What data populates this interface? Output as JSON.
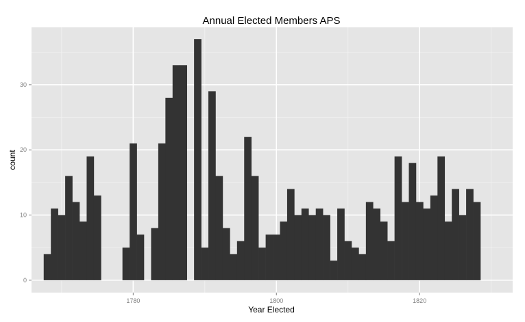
{
  "chart_data": {
    "type": "bar",
    "title": "Annual Elected Members APS",
    "xlabel": "Year Elected",
    "ylabel": "count",
    "xlim": [
      1765.8,
      1833.0
    ],
    "ylim": [
      -1.9,
      38.8
    ],
    "x_ticks": [
      1780,
      1800,
      1820
    ],
    "y_ticks": [
      0,
      10,
      20,
      30
    ],
    "grid": true,
    "legend": "none",
    "bin_width": 1,
    "x": [
      1768,
      1769,
      1770,
      1771,
      1772,
      1773,
      1774,
      1775,
      1776,
      1777,
      1778,
      1779,
      1780,
      1781,
      1782,
      1783,
      1784,
      1785,
      1786,
      1787,
      1788,
      1789,
      1790,
      1791,
      1792,
      1793,
      1794,
      1795,
      1796,
      1797,
      1798,
      1799,
      1800,
      1801,
      1802,
      1803,
      1804,
      1805,
      1806,
      1807,
      1808,
      1809,
      1810,
      1811,
      1812,
      1813,
      1814,
      1815,
      1816,
      1817,
      1818,
      1819,
      1820,
      1821,
      1822,
      1823,
      1824,
      1825,
      1826,
      1827,
      1828,
      1829
    ],
    "values": [
      4,
      11,
      10,
      16,
      12,
      9,
      19,
      13,
      0,
      0,
      0,
      5,
      21,
      7,
      0,
      8,
      21,
      28,
      33,
      33,
      0,
      37,
      5,
      29,
      16,
      8,
      4,
      6,
      22,
      16,
      5,
      7,
      7,
      9,
      14,
      10,
      11,
      10,
      11,
      10,
      3,
      11,
      6,
      5,
      4,
      12,
      11,
      9,
      6,
      19,
      12,
      18,
      12,
      11,
      13,
      19,
      9,
      14,
      10,
      14,
      12,
      0
    ],
    "colors": {
      "panel": "#e5e5e5",
      "grid_major": "#ffffff",
      "grid_minor": "#f2f2f2",
      "bar": "#333333",
      "tick_label": "#7f7f7f"
    }
  }
}
